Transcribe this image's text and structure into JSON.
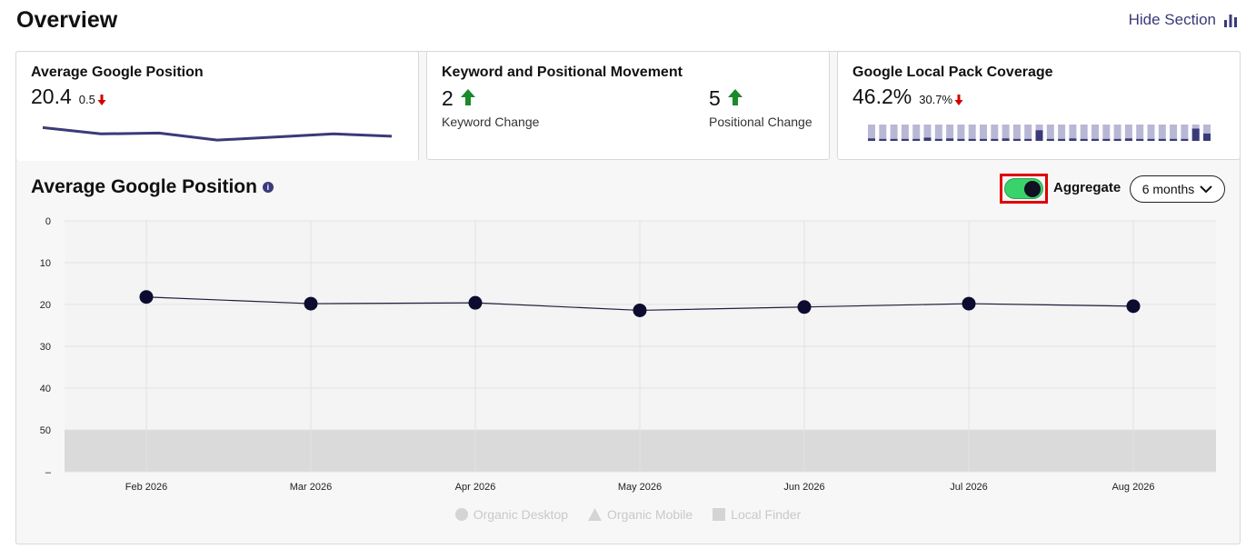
{
  "header": {
    "title": "Overview",
    "hide_section_label": "Hide Section"
  },
  "cards": {
    "avg_position": {
      "title": "Average Google Position",
      "value": "20.4",
      "delta": "0.5",
      "sparkline": [
        18.2,
        19.8,
        19.6,
        21.4,
        20.6,
        19.8,
        20.4
      ]
    },
    "keyword_movement": {
      "title": "Keyword and Positional Movement",
      "keyword_value": "2",
      "keyword_label": "Keyword Change",
      "positional_value": "5",
      "positional_label": "Positional Change"
    },
    "local_pack": {
      "title": "Google Local Pack Coverage",
      "value": "46.2%",
      "delta": "30.7%",
      "bars": [
        0.15,
        0.12,
        0.12,
        0.12,
        0.12,
        0.2,
        0.12,
        0.15,
        0.12,
        0.12,
        0.12,
        0.12,
        0.15,
        0.12,
        0.12,
        0.65,
        0.12,
        0.12,
        0.15,
        0.12,
        0.12,
        0.12,
        0.12,
        0.15,
        0.12,
        0.12,
        0.12,
        0.12,
        0.12,
        0.75,
        0.45
      ]
    }
  },
  "chart_section": {
    "title": "Average Google Position",
    "aggregate_label": "Aggregate",
    "range_label": "6 months"
  },
  "chart_data": {
    "type": "line",
    "x": [
      "Feb 2026",
      "Mar 2026",
      "Apr 2026",
      "May 2026",
      "Jun 2026",
      "Jul 2026",
      "Aug 2026"
    ],
    "series": [
      {
        "values": [
          18.2,
          19.8,
          19.6,
          21.4,
          20.6,
          19.8,
          20.4
        ]
      }
    ],
    "y_ticks": [
      "0",
      "10",
      "20",
      "30",
      "40",
      "50",
      "–"
    ],
    "ylim": [
      0,
      60
    ],
    "y_inverted": true,
    "shaded_band": [
      50,
      60
    ],
    "grid": true,
    "legend": [
      "Organic Desktop",
      "Organic Mobile",
      "Local Finder"
    ],
    "legend_position": "bottom"
  },
  "colors": {
    "accent": "#3a3a7a",
    "line": "#1f1f3f",
    "point": "#0c0c30",
    "toggle_on": "#3ad26a",
    "up": "#1a8a2a",
    "down": "#d00000"
  }
}
